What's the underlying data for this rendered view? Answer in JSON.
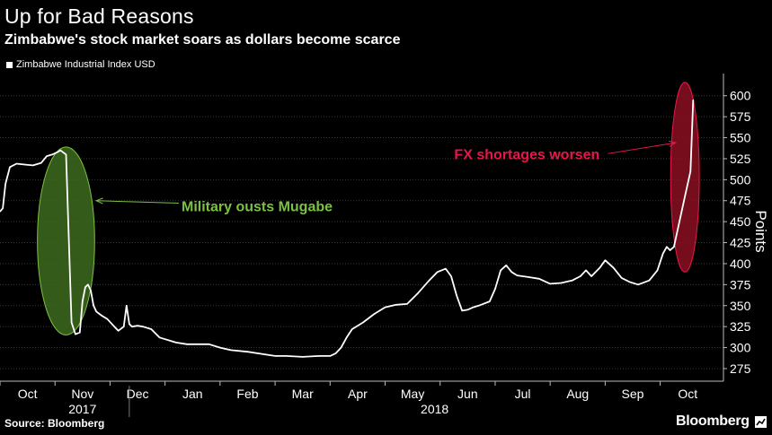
{
  "title": "Up for Bad Reasons",
  "subtitle": "Zimbabwe's stock market soars as dollars become scarce",
  "legend_label": "Zimbabwe Industrial Index USD",
  "source": "Source: Bloomberg",
  "brand": "Bloomberg",
  "colors": {
    "background": "#000000",
    "line": "#ffffff",
    "green_annotation": "#7bc144",
    "green_fill": "#3d6b1e",
    "red_annotation": "#e8174a",
    "red_fill": "#8a0f22",
    "grid": "#3a3a3a"
  },
  "chart_data": {
    "type": "line",
    "title": "Up for Bad Reasons",
    "subtitle": "Zimbabwe's stock market soars as dollars become scarce",
    "ylabel": "Points",
    "ylim": [
      260,
      620
    ],
    "yticks": [
      275,
      300,
      325,
      350,
      375,
      400,
      425,
      450,
      475,
      500,
      525,
      550,
      575,
      600
    ],
    "xlim": [
      0,
      13.15
    ],
    "month_labels": [
      "Oct",
      "Nov",
      "Dec",
      "Jan",
      "Feb",
      "Mar",
      "Apr",
      "May",
      "Jun",
      "Jul",
      "Aug",
      "Sep",
      "Oct"
    ],
    "year_labels": [
      {
        "label": "2017",
        "month_index": 1
      },
      {
        "label": "2018",
        "month_index": 7.4
      }
    ],
    "series": [
      {
        "name": "Zimbabwe Industrial Index USD",
        "x": [
          0.0,
          0.05,
          0.1,
          0.18,
          0.3,
          0.45,
          0.6,
          0.75,
          0.85,
          0.95,
          1.05,
          1.1,
          1.2,
          1.3,
          1.37,
          1.45,
          1.5,
          1.55,
          1.6,
          1.65,
          1.7,
          1.75,
          1.85,
          1.95,
          2.05,
          2.15,
          2.25,
          2.3,
          2.35,
          2.4,
          2.5,
          2.6,
          2.75,
          2.9,
          3.0,
          3.2,
          3.4,
          3.6,
          3.8,
          4.0,
          4.2,
          4.5,
          4.8,
          5.0,
          5.2,
          5.5,
          5.8,
          6.0,
          6.1,
          6.2,
          6.3,
          6.4,
          6.6,
          6.8,
          7.0,
          7.2,
          7.4,
          7.6,
          7.8,
          7.95,
          8.1,
          8.2,
          8.3,
          8.4,
          8.5,
          8.6,
          8.7,
          8.9,
          9.0,
          9.1,
          9.2,
          9.3,
          9.4,
          9.6,
          9.8,
          10.0,
          10.2,
          10.4,
          10.55,
          10.65,
          10.75,
          10.9,
          11.0,
          11.15,
          11.3,
          11.45,
          11.6,
          11.8,
          11.95,
          12.05,
          12.12,
          12.18,
          12.25,
          12.35,
          12.45,
          12.55,
          12.6
        ],
        "values": [
          462,
          466,
          495,
          515,
          519,
          518,
          517,
          520,
          528,
          530,
          533,
          535,
          530,
          330,
          316,
          318,
          355,
          372,
          375,
          368,
          350,
          343,
          338,
          334,
          327,
          320,
          325,
          350,
          328,
          325,
          326,
          325,
          322,
          312,
          310,
          306,
          304,
          304,
          304,
          300,
          297,
          295,
          292,
          290,
          290,
          289,
          290,
          290,
          293,
          300,
          312,
          322,
          330,
          340,
          348,
          351,
          352,
          365,
          380,
          390,
          394,
          385,
          362,
          344,
          345,
          348,
          350,
          355,
          370,
          392,
          398,
          390,
          386,
          384,
          382,
          376,
          377,
          380,
          385,
          392,
          385,
          395,
          404,
          395,
          383,
          378,
          375,
          380,
          392,
          412,
          420,
          416,
          420,
          450,
          480,
          510,
          595
        ]
      }
    ],
    "annotations": [
      {
        "text": "Military ousts Mugabe",
        "color": "#7bc144",
        "ellipse_x": 1.2,
        "ellipse_y": 427,
        "ellipse_rx_months": 0.52,
        "ellipse_ry_points": 112,
        "arrow_to_x": 1.75,
        "arrow_to_y": 475,
        "arrow_from_x": 3.25,
        "arrow_from_y": 472,
        "label_x": 3.3,
        "label_y": 469
      },
      {
        "text": "FX shortages worsen",
        "color": "#e8174a",
        "ellipse_x": 12.45,
        "ellipse_y": 503,
        "ellipse_rx_months": 0.26,
        "ellipse_ry_points": 113,
        "arrow_to_x": 12.28,
        "arrow_to_y": 544,
        "arrow_from_x": 11.05,
        "arrow_from_y": 531,
        "label_x": 10.9,
        "label_y": 531
      }
    ]
  }
}
